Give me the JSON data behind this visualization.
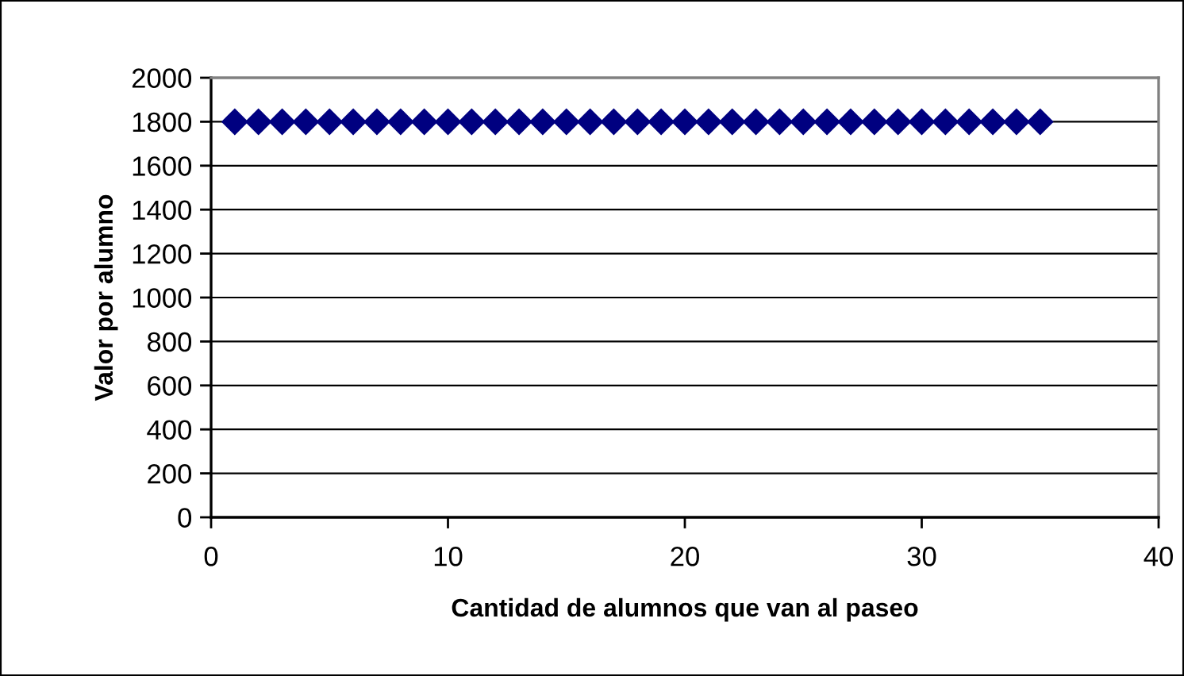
{
  "chart_data": {
    "type": "scatter",
    "xlabel": "Cantidad de alumnos que van al paseo",
    "ylabel": "Valor por alumno",
    "x": [
      1,
      2,
      3,
      4,
      5,
      6,
      7,
      8,
      9,
      10,
      11,
      12,
      13,
      14,
      15,
      16,
      17,
      18,
      19,
      20,
      21,
      22,
      23,
      24,
      25,
      26,
      27,
      28,
      29,
      30,
      31,
      32,
      33,
      34,
      35
    ],
    "series": [
      {
        "color": "#000080",
        "values": [
          1800,
          1800,
          1800,
          1800,
          1800,
          1800,
          1800,
          1800,
          1800,
          1800,
          1800,
          1800,
          1800,
          1800,
          1800,
          1800,
          1800,
          1800,
          1800,
          1800,
          1800,
          1800,
          1800,
          1800,
          1800,
          1800,
          1800,
          1800,
          1800,
          1800,
          1800,
          1800,
          1800,
          1800,
          1800
        ]
      }
    ],
    "xlim": [
      0,
      40
    ],
    "xticks": [
      0,
      10,
      20,
      30,
      40
    ],
    "ylim": [
      0,
      2000
    ],
    "yticks": [
      0,
      200,
      400,
      600,
      800,
      1000,
      1200,
      1400,
      1600,
      1800,
      2000
    ],
    "grid": "y",
    "marker": "diamond"
  }
}
